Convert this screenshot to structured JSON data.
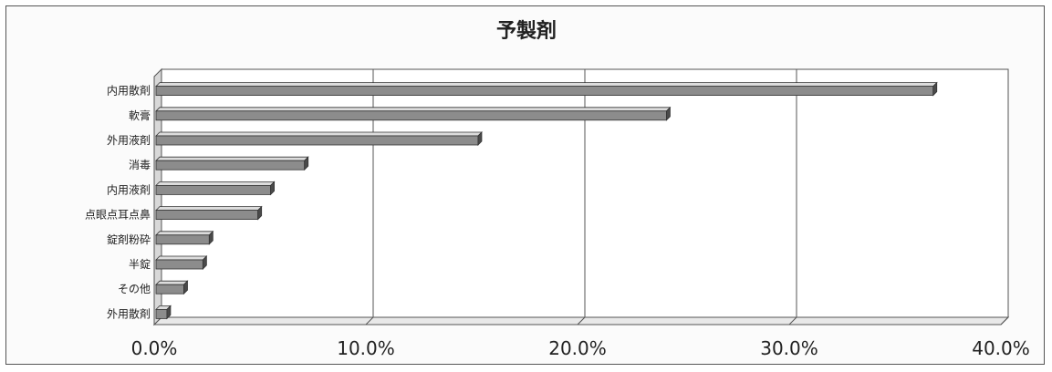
{
  "chart_data": {
    "type": "bar",
    "orientation": "horizontal",
    "title": "予製剤",
    "xlabel": "",
    "ylabel": "",
    "categories": [
      "内用散剤",
      "軟膏",
      "外用液剤",
      "消毒",
      "内用液剤",
      "点眼点耳点鼻",
      "錠剤粉砕",
      "半錠",
      "その他",
      "外用散剤"
    ],
    "values": [
      36.8,
      24.2,
      15.3,
      7.1,
      5.5,
      4.9,
      2.6,
      2.3,
      1.4,
      0.6
    ],
    "xlim": [
      0,
      40
    ],
    "ticks": [
      "0.0%",
      "10.0%",
      "20.0%",
      "30.0%",
      "40.0%"
    ],
    "tick_values": [
      0,
      10,
      20,
      30,
      40
    ],
    "grid": "vertical",
    "legend": "none",
    "bar_color": "#8c8c8c",
    "bar_top_color": "#dcdcdc",
    "bar_side_color": "#4a4a4a"
  }
}
